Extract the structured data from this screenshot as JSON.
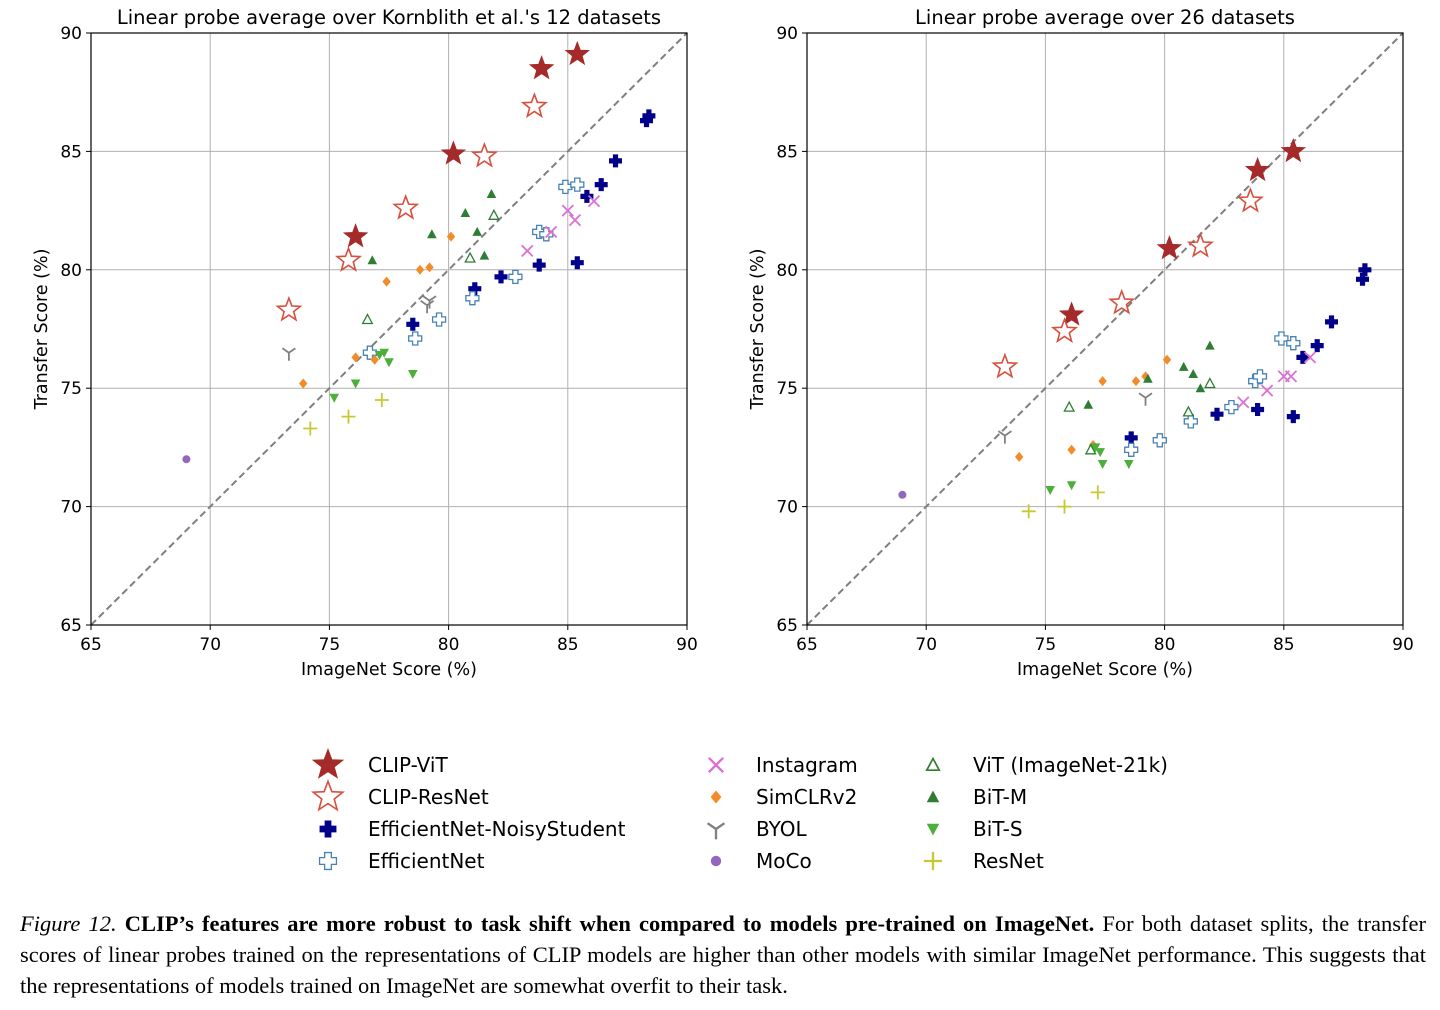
{
  "chart_data": [
    {
      "type": "scatter",
      "title": "Linear probe average over Kornblith et al.'s 12 datasets",
      "xlabel": "ImageNet Score (%)",
      "ylabel": "Transfer Score (%)",
      "xlim": [
        65,
        90
      ],
      "ylim": [
        65,
        90
      ],
      "xticks": [
        "65",
        "70",
        "75",
        "80",
        "85",
        "90"
      ],
      "yticks": [
        "65",
        "70",
        "75",
        "80",
        "85",
        "90"
      ],
      "grid": true,
      "reference_line": "y = x (dashed)",
      "series": [
        {
          "name": "CLIP-ViT",
          "points": [
            [
              76.1,
              81.4
            ],
            [
              80.2,
              84.9
            ],
            [
              83.9,
              88.5
            ],
            [
              85.4,
              89.1
            ]
          ]
        },
        {
          "name": "CLIP-ResNet",
          "points": [
            [
              73.3,
              78.3
            ],
            [
              75.8,
              80.4
            ],
            [
              78.2,
              82.6
            ],
            [
              81.5,
              84.8
            ],
            [
              83.6,
              86.9
            ]
          ]
        },
        {
          "name": "EfficientNet-NoisyStudent",
          "points": [
            [
              78.5,
              77.7
            ],
            [
              81.1,
              79.2
            ],
            [
              82.2,
              79.7
            ],
            [
              83.8,
              80.2
            ],
            [
              85.4,
              80.3
            ],
            [
              85.8,
              83.1
            ],
            [
              86.4,
              83.6
            ],
            [
              87.0,
              84.6
            ],
            [
              88.3,
              86.3
            ],
            [
              88.4,
              86.5
            ]
          ]
        },
        {
          "name": "EfficientNet",
          "points": [
            [
              76.7,
              76.5
            ],
            [
              78.6,
              77.1
            ],
            [
              79.6,
              77.9
            ],
            [
              81.0,
              78.8
            ],
            [
              82.8,
              79.7
            ],
            [
              83.8,
              81.6
            ],
            [
              84.1,
              81.5
            ],
            [
              84.9,
              83.5
            ],
            [
              85.4,
              83.6
            ]
          ]
        },
        {
          "name": "Instagram",
          "points": [
            [
              83.3,
              80.8
            ],
            [
              84.3,
              81.6
            ],
            [
              85.0,
              82.5
            ],
            [
              85.3,
              82.1
            ],
            [
              86.1,
              82.9
            ]
          ]
        },
        {
          "name": "SimCLRv2",
          "points": [
            [
              73.9,
              75.2
            ],
            [
              76.1,
              76.3
            ],
            [
              76.9,
              76.2
            ],
            [
              77.4,
              79.5
            ],
            [
              78.8,
              80.0
            ],
            [
              79.2,
              80.1
            ],
            [
              80.1,
              81.4
            ]
          ]
        },
        {
          "name": "BYOL",
          "points": [
            [
              73.3,
              76.5
            ],
            [
              79.1,
              78.5
            ],
            [
              79.2,
              78.7
            ]
          ]
        },
        {
          "name": "MoCo",
          "points": [
            [
              69.0,
              72.0
            ]
          ]
        },
        {
          "name": "ViT (ImageNet-21k)",
          "points": [
            [
              76.6,
              77.9
            ],
            [
              80.9,
              80.5
            ],
            [
              81.9,
              82.3
            ]
          ]
        },
        {
          "name": "BiT-M",
          "points": [
            [
              76.8,
              80.4
            ],
            [
              79.3,
              81.5
            ],
            [
              80.7,
              82.4
            ],
            [
              81.2,
              81.6
            ],
            [
              81.5,
              80.6
            ],
            [
              81.8,
              83.2
            ]
          ]
        },
        {
          "name": "BiT-S",
          "points": [
            [
              75.2,
              74.6
            ],
            [
              76.1,
              75.2
            ],
            [
              77.1,
              76.4
            ],
            [
              77.3,
              76.5
            ],
            [
              77.5,
              76.1
            ],
            [
              78.5,
              75.6
            ]
          ]
        },
        {
          "name": "ResNet",
          "points": [
            [
              74.2,
              73.3
            ],
            [
              75.8,
              73.8
            ],
            [
              77.2,
              74.5
            ]
          ]
        }
      ]
    },
    {
      "type": "scatter",
      "title": "Linear probe average over 26 datasets",
      "xlabel": "ImageNet Score (%)",
      "ylabel": "Transfer Score (%)",
      "xlim": [
        65,
        90
      ],
      "ylim": [
        65,
        90
      ],
      "xticks": [
        "65",
        "70",
        "75",
        "80",
        "85",
        "90"
      ],
      "yticks": [
        "65",
        "70",
        "75",
        "80",
        "85",
        "90"
      ],
      "grid": true,
      "reference_line": "y = x (dashed)",
      "series": [
        {
          "name": "CLIP-ViT",
          "points": [
            [
              76.1,
              78.1
            ],
            [
              80.2,
              80.9
            ],
            [
              83.9,
              84.2
            ],
            [
              85.4,
              85.0
            ]
          ]
        },
        {
          "name": "CLIP-ResNet",
          "points": [
            [
              73.3,
              75.9
            ],
            [
              75.8,
              77.4
            ],
            [
              78.2,
              78.6
            ],
            [
              81.5,
              81.0
            ],
            [
              83.6,
              82.9
            ]
          ]
        },
        {
          "name": "EfficientNet-NoisyStudent",
          "points": [
            [
              78.6,
              72.9
            ],
            [
              82.2,
              73.9
            ],
            [
              83.9,
              74.1
            ],
            [
              85.4,
              73.8
            ],
            [
              85.8,
              76.3
            ],
            [
              86.4,
              76.8
            ],
            [
              87.0,
              77.8
            ],
            [
              88.3,
              79.6
            ],
            [
              88.4,
              80.0
            ]
          ]
        },
        {
          "name": "EfficientNet",
          "points": [
            [
              78.6,
              72.4
            ],
            [
              79.8,
              72.8
            ],
            [
              81.1,
              73.6
            ],
            [
              82.8,
              74.2
            ],
            [
              83.8,
              75.3
            ],
            [
              84.0,
              75.5
            ],
            [
              84.9,
              77.1
            ],
            [
              85.4,
              76.9
            ]
          ]
        },
        {
          "name": "Instagram",
          "points": [
            [
              83.3,
              74.4
            ],
            [
              84.3,
              74.9
            ],
            [
              85.0,
              75.5
            ],
            [
              85.3,
              75.5
            ],
            [
              86.1,
              76.3
            ]
          ]
        },
        {
          "name": "SimCLRv2",
          "points": [
            [
              73.9,
              72.1
            ],
            [
              76.1,
              72.4
            ],
            [
              77.0,
              72.6
            ],
            [
              77.4,
              75.3
            ],
            [
              78.8,
              75.3
            ],
            [
              79.2,
              75.5
            ],
            [
              80.1,
              76.2
            ]
          ]
        },
        {
          "name": "BYOL",
          "points": [
            [
              73.3,
              73.0
            ],
            [
              79.2,
              74.6
            ]
          ]
        },
        {
          "name": "MoCo",
          "points": [
            [
              69.0,
              70.5
            ]
          ]
        },
        {
          "name": "ViT (ImageNet-21k)",
          "points": [
            [
              76.0,
              74.2
            ],
            [
              76.9,
              72.4
            ],
            [
              81.0,
              74.0
            ],
            [
              81.9,
              75.2
            ]
          ]
        },
        {
          "name": "BiT-M",
          "points": [
            [
              76.8,
              74.3
            ],
            [
              79.3,
              75.4
            ],
            [
              80.8,
              75.9
            ],
            [
              81.2,
              75.6
            ],
            [
              81.5,
              75.0
            ],
            [
              81.9,
              76.8
            ]
          ]
        },
        {
          "name": "BiT-S",
          "points": [
            [
              75.2,
              70.7
            ],
            [
              76.1,
              70.9
            ],
            [
              77.1,
              72.5
            ],
            [
              77.3,
              72.3
            ],
            [
              77.4,
              71.8
            ],
            [
              78.5,
              71.8
            ]
          ]
        },
        {
          "name": "ResNet",
          "points": [
            [
              74.3,
              69.8
            ],
            [
              75.8,
              70.0
            ],
            [
              77.2,
              70.6
            ]
          ]
        }
      ]
    }
  ],
  "legend": {
    "placement": "bottom-center",
    "entries": [
      {
        "name": "CLIP-ViT",
        "marker": "star-filled",
        "color": "#a52a2a"
      },
      {
        "name": "CLIP-ResNet",
        "marker": "star-open",
        "color": "#d94f3d"
      },
      {
        "name": "EfficientNet-NoisyStudent",
        "marker": "plus-filled",
        "color": "#00008b"
      },
      {
        "name": "EfficientNet",
        "marker": "plus-open",
        "color": "#4682b4"
      },
      {
        "name": "Instagram",
        "marker": "x",
        "color": "#da70d6"
      },
      {
        "name": "SimCLRv2",
        "marker": "diamond",
        "color": "#f28c28"
      },
      {
        "name": "BYOL",
        "marker": "tri-down",
        "color": "#808080"
      },
      {
        "name": "MoCo",
        "marker": "dot",
        "color": "#9467bd"
      },
      {
        "name": "ViT (ImageNet-21k)",
        "marker": "triangle-up-open",
        "color": "#2e7d32"
      },
      {
        "name": "BiT-M",
        "marker": "triangle-up",
        "color": "#2e7d32"
      },
      {
        "name": "BiT-S",
        "marker": "triangle-down",
        "color": "#4caf3a"
      },
      {
        "name": "ResNet",
        "marker": "plus-thin",
        "color": "#c8c832"
      }
    ]
  },
  "caption": {
    "label": "Figure 12.",
    "bold": "CLIP’s features are more robust to task shift when compared to models pre-trained on ImageNet.",
    "text": "For both dataset splits, the transfer scores of linear probes trained on the representations of CLIP models are higher than other models with similar ImageNet performance. This suggests that the representations of models trained on ImageNet are somewhat overfit to their task."
  }
}
